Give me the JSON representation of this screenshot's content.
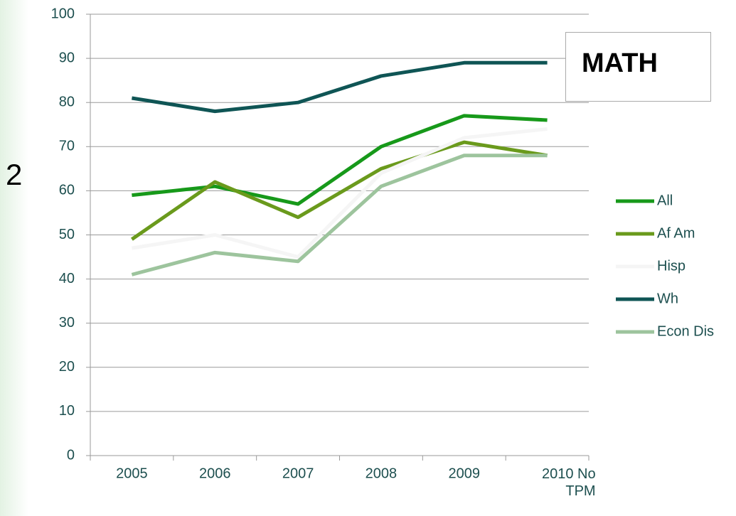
{
  "side_text": "2",
  "chart_data": {
    "type": "line",
    "title": "MATH",
    "categories": [
      "2005",
      "2006",
      "2007",
      "2008",
      "2009",
      "2010 No TPM"
    ],
    "series": [
      {
        "name": "All",
        "color": "#17991a",
        "values": [
          59,
          61,
          57,
          70,
          77,
          76
        ]
      },
      {
        "name": "Af Am",
        "color": "#6a9a1c",
        "values": [
          49,
          62,
          54,
          65,
          71,
          68
        ]
      },
      {
        "name": "Hisp",
        "color": "#f5f5f5",
        "values": [
          47,
          50,
          45,
          64,
          72,
          74
        ]
      },
      {
        "name": "Wh",
        "color": "#0f5555",
        "values": [
          81,
          78,
          80,
          86,
          89,
          89
        ]
      },
      {
        "name": "Econ Dis",
        "color": "#9dc49d",
        "values": [
          41,
          46,
          44,
          61,
          68,
          68
        ]
      }
    ],
    "ylim": [
      0,
      100
    ],
    "yticks": [
      0,
      10,
      20,
      30,
      40,
      50,
      60,
      70,
      80,
      90,
      100
    ],
    "grid": true,
    "legend": "right"
  }
}
